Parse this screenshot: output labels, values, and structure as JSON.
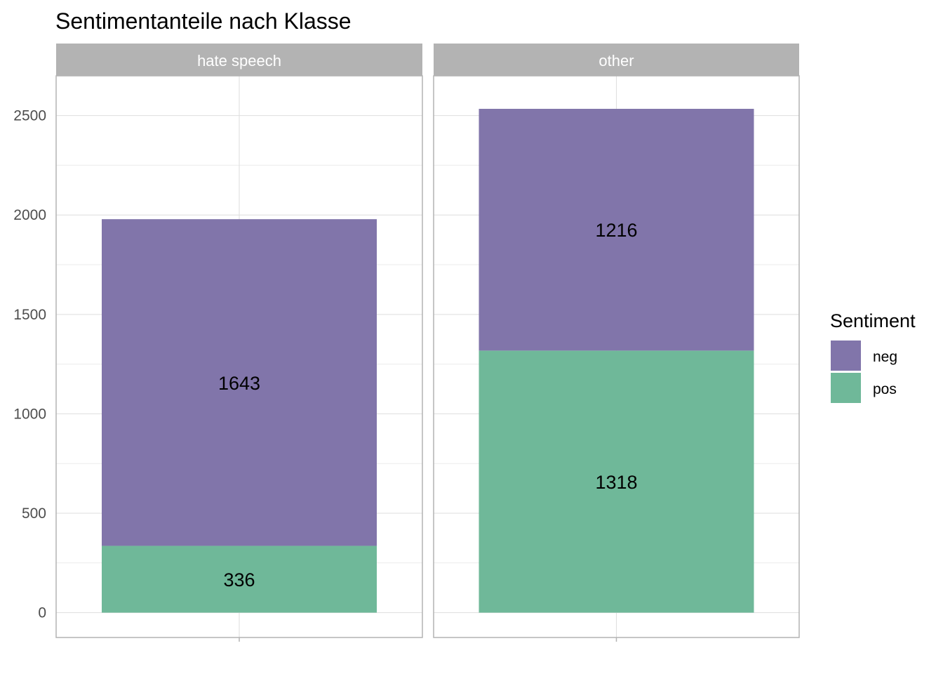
{
  "chart_data": {
    "type": "bar",
    "stacked": true,
    "faceted": true,
    "title": "Sentimentanteile nach Klasse",
    "xlabel": "",
    "ylabel": "",
    "ylim": [
      -125,
      2700
    ],
    "yticks": [
      0,
      500,
      1000,
      1500,
      2000,
      2500
    ],
    "grid": true,
    "legend": {
      "title": "Sentiment",
      "position": "right"
    },
    "panels": [
      {
        "name": "hate speech",
        "segments": [
          {
            "series": "pos",
            "value": 336
          },
          {
            "series": "neg",
            "value": 1643
          }
        ]
      },
      {
        "name": "other",
        "segments": [
          {
            "series": "pos",
            "value": 1318
          },
          {
            "series": "neg",
            "value": 1216
          }
        ]
      }
    ],
    "series": [
      {
        "name": "neg",
        "color": "#8175aa"
      },
      {
        "name": "pos",
        "color": "#6fb899"
      }
    ],
    "legend_order": [
      "neg",
      "pos"
    ]
  }
}
